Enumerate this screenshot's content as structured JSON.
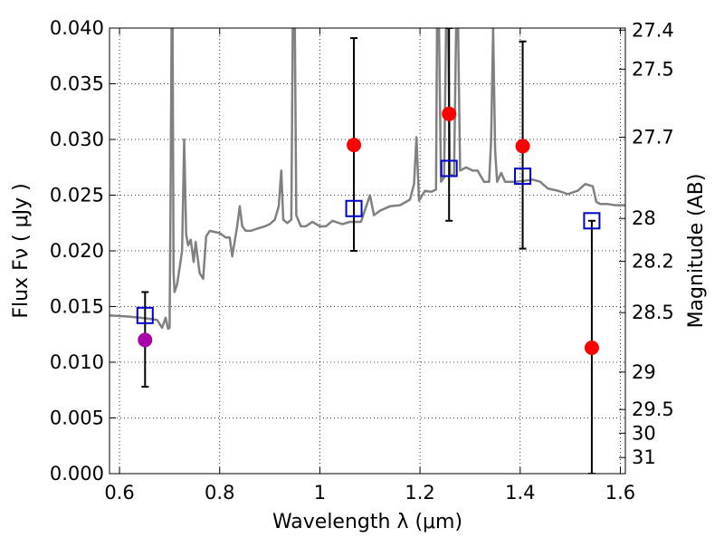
{
  "chart_data": {
    "type": "scatter",
    "title": "",
    "xlabel": "Wavelength  λ (μm)",
    "ylabel_left": "Flux  Fν  ( μJy )",
    "ylabel_right": "Magnitude (AB)",
    "xlim": [
      0.58,
      1.61
    ],
    "ylim": [
      0.0,
      0.04
    ],
    "grid": true,
    "x_ticks": [
      0.6,
      0.8,
      1.0,
      1.2,
      1.4,
      1.6
    ],
    "x_tick_labels": [
      "0.6",
      "0.8",
      "1",
      "1.2",
      "1.4",
      "1.6"
    ],
    "y_ticks": [
      0.0,
      0.005,
      0.01,
      0.015,
      0.02,
      0.025,
      0.03,
      0.035,
      0.04
    ],
    "y_tick_labels": [
      "0.000",
      "0.005",
      "0.010",
      "0.015",
      "0.020",
      "0.025",
      "0.030",
      "0.035",
      "0.040"
    ],
    "right_ticks": [
      {
        "label": "27.4",
        "mag": 27.4
      },
      {
        "label": "27.5",
        "mag": 27.5
      },
      {
        "label": "27.7",
        "mag": 27.7
      },
      {
        "label": "28",
        "mag": 28.0
      },
      {
        "label": "28.2",
        "mag": 28.2
      },
      {
        "label": "28.5",
        "mag": 28.5
      },
      {
        "label": "29",
        "mag": 29.0
      },
      {
        "label": "29.5",
        "mag": 29.5
      },
      {
        "label": "30",
        "mag": 30.0
      },
      {
        "label": "31",
        "mag": 31.0
      }
    ],
    "series": [
      {
        "kind": "line",
        "color": "#808080",
        "points": [
          [
            0.58,
            0.0142
          ],
          [
            0.62,
            0.0141
          ],
          [
            0.64,
            0.014
          ],
          [
            0.66,
            0.0139
          ],
          [
            0.675,
            0.0138
          ],
          [
            0.685,
            0.0131
          ],
          [
            0.692,
            0.014
          ],
          [
            0.697,
            0.013
          ],
          [
            0.7,
            0.0131
          ],
          [
            0.702,
            0.025
          ],
          [
            0.704,
            0.04
          ],
          [
            0.706,
            0.04
          ],
          [
            0.708,
            0.018
          ],
          [
            0.71,
            0.0163
          ],
          [
            0.715,
            0.017
          ],
          [
            0.72,
            0.0185
          ],
          [
            0.725,
            0.02
          ],
          [
            0.729,
            0.03
          ],
          [
            0.733,
            0.0215
          ],
          [
            0.737,
            0.0205
          ],
          [
            0.742,
            0.021
          ],
          [
            0.748,
            0.019
          ],
          [
            0.752,
            0.0208
          ],
          [
            0.76,
            0.018
          ],
          [
            0.767,
            0.0175
          ],
          [
            0.773,
            0.0213
          ],
          [
            0.78,
            0.0218
          ],
          [
            0.79,
            0.0217
          ],
          [
            0.8,
            0.0216
          ],
          [
            0.812,
            0.0212
          ],
          [
            0.82,
            0.0212
          ],
          [
            0.825,
            0.0195
          ],
          [
            0.835,
            0.0222
          ],
          [
            0.84,
            0.024
          ],
          [
            0.845,
            0.0222
          ],
          [
            0.852,
            0.0218
          ],
          [
            0.862,
            0.0218
          ],
          [
            0.875,
            0.022
          ],
          [
            0.89,
            0.0222
          ],
          [
            0.9,
            0.0224
          ],
          [
            0.91,
            0.0228
          ],
          [
            0.918,
            0.024
          ],
          [
            0.923,
            0.0272
          ],
          [
            0.927,
            0.0228
          ],
          [
            0.935,
            0.0225
          ],
          [
            0.943,
            0.0228
          ],
          [
            0.946,
            0.04
          ],
          [
            0.95,
            0.04
          ],
          [
            0.953,
            0.0232
          ],
          [
            0.962,
            0.0222
          ],
          [
            0.972,
            0.0222
          ],
          [
            0.985,
            0.0226
          ],
          [
            1.0,
            0.0222
          ],
          [
            1.012,
            0.0222
          ],
          [
            1.025,
            0.0227
          ],
          [
            1.045,
            0.0224
          ],
          [
            1.06,
            0.0226
          ],
          [
            1.082,
            0.0226
          ],
          [
            1.092,
            0.0239
          ],
          [
            1.1,
            0.025
          ],
          [
            1.108,
            0.0232
          ],
          [
            1.12,
            0.0236
          ],
          [
            1.14,
            0.024
          ],
          [
            1.16,
            0.0241
          ],
          [
            1.18,
            0.0246
          ],
          [
            1.188,
            0.026
          ],
          [
            1.193,
            0.0302
          ],
          [
            1.198,
            0.0245
          ],
          [
            1.21,
            0.0254
          ],
          [
            1.222,
            0.0253
          ],
          [
            1.232,
            0.0255
          ],
          [
            1.234,
            0.04
          ],
          [
            1.238,
            0.04
          ],
          [
            1.242,
            0.0262
          ],
          [
            1.248,
            0.0266
          ],
          [
            1.252,
            0.04
          ],
          [
            1.256,
            0.04
          ],
          [
            1.26,
            0.0268
          ],
          [
            1.268,
            0.0268
          ],
          [
            1.272,
            0.04
          ],
          [
            1.276,
            0.04
          ],
          [
            1.28,
            0.0272
          ],
          [
            1.292,
            0.0275
          ],
          [
            1.305,
            0.0272
          ],
          [
            1.315,
            0.0272
          ],
          [
            1.328,
            0.0262
          ],
          [
            1.338,
            0.0262
          ],
          [
            1.342,
            0.03
          ],
          [
            1.346,
            0.04
          ],
          [
            1.35,
            0.029
          ],
          [
            1.354,
            0.0262
          ],
          [
            1.362,
            0.027
          ],
          [
            1.37,
            0.0262
          ],
          [
            1.39,
            0.0262
          ],
          [
            1.41,
            0.0263
          ],
          [
            1.425,
            0.0264
          ],
          [
            1.44,
            0.0262
          ],
          [
            1.455,
            0.0256
          ],
          [
            1.475,
            0.0254
          ],
          [
            1.495,
            0.0251
          ],
          [
            1.515,
            0.0254
          ],
          [
            1.53,
            0.026
          ],
          [
            1.545,
            0.0258
          ],
          [
            1.552,
            0.0244
          ],
          [
            1.56,
            0.0242
          ],
          [
            1.575,
            0.0242
          ],
          [
            1.59,
            0.0241
          ],
          [
            1.61,
            0.0241
          ]
        ]
      },
      {
        "kind": "errorbar-points",
        "color": "#ff0000",
        "points": [
          {
            "x": 1.068,
            "y": 0.0295,
            "yerr_low": 0.02,
            "yerr_high": 0.0391
          },
          {
            "x": 1.258,
            "y": 0.0323,
            "yerr_low": 0.0227,
            "yerr_high": 0.04
          },
          {
            "x": 1.405,
            "y": 0.0294,
            "yerr_low": 0.0202,
            "yerr_high": 0.0388
          },
          {
            "x": 1.543,
            "y": 0.0113,
            "yerr_low": 0.0,
            "yerr_high": 0.0227
          }
        ]
      },
      {
        "kind": "errorbar-points",
        "color": "#aa00aa",
        "points": [
          {
            "x": 0.651,
            "y": 0.012,
            "yerr_low": 0.0078,
            "yerr_high": 0.0163
          }
        ]
      },
      {
        "kind": "squares",
        "color": "#0000cc",
        "points": [
          {
            "x": 0.651,
            "y": 0.0142
          },
          {
            "x": 1.068,
            "y": 0.0238
          },
          {
            "x": 1.258,
            "y": 0.0274
          },
          {
            "x": 1.405,
            "y": 0.0267
          },
          {
            "x": 1.543,
            "y": 0.0227
          }
        ]
      }
    ]
  }
}
